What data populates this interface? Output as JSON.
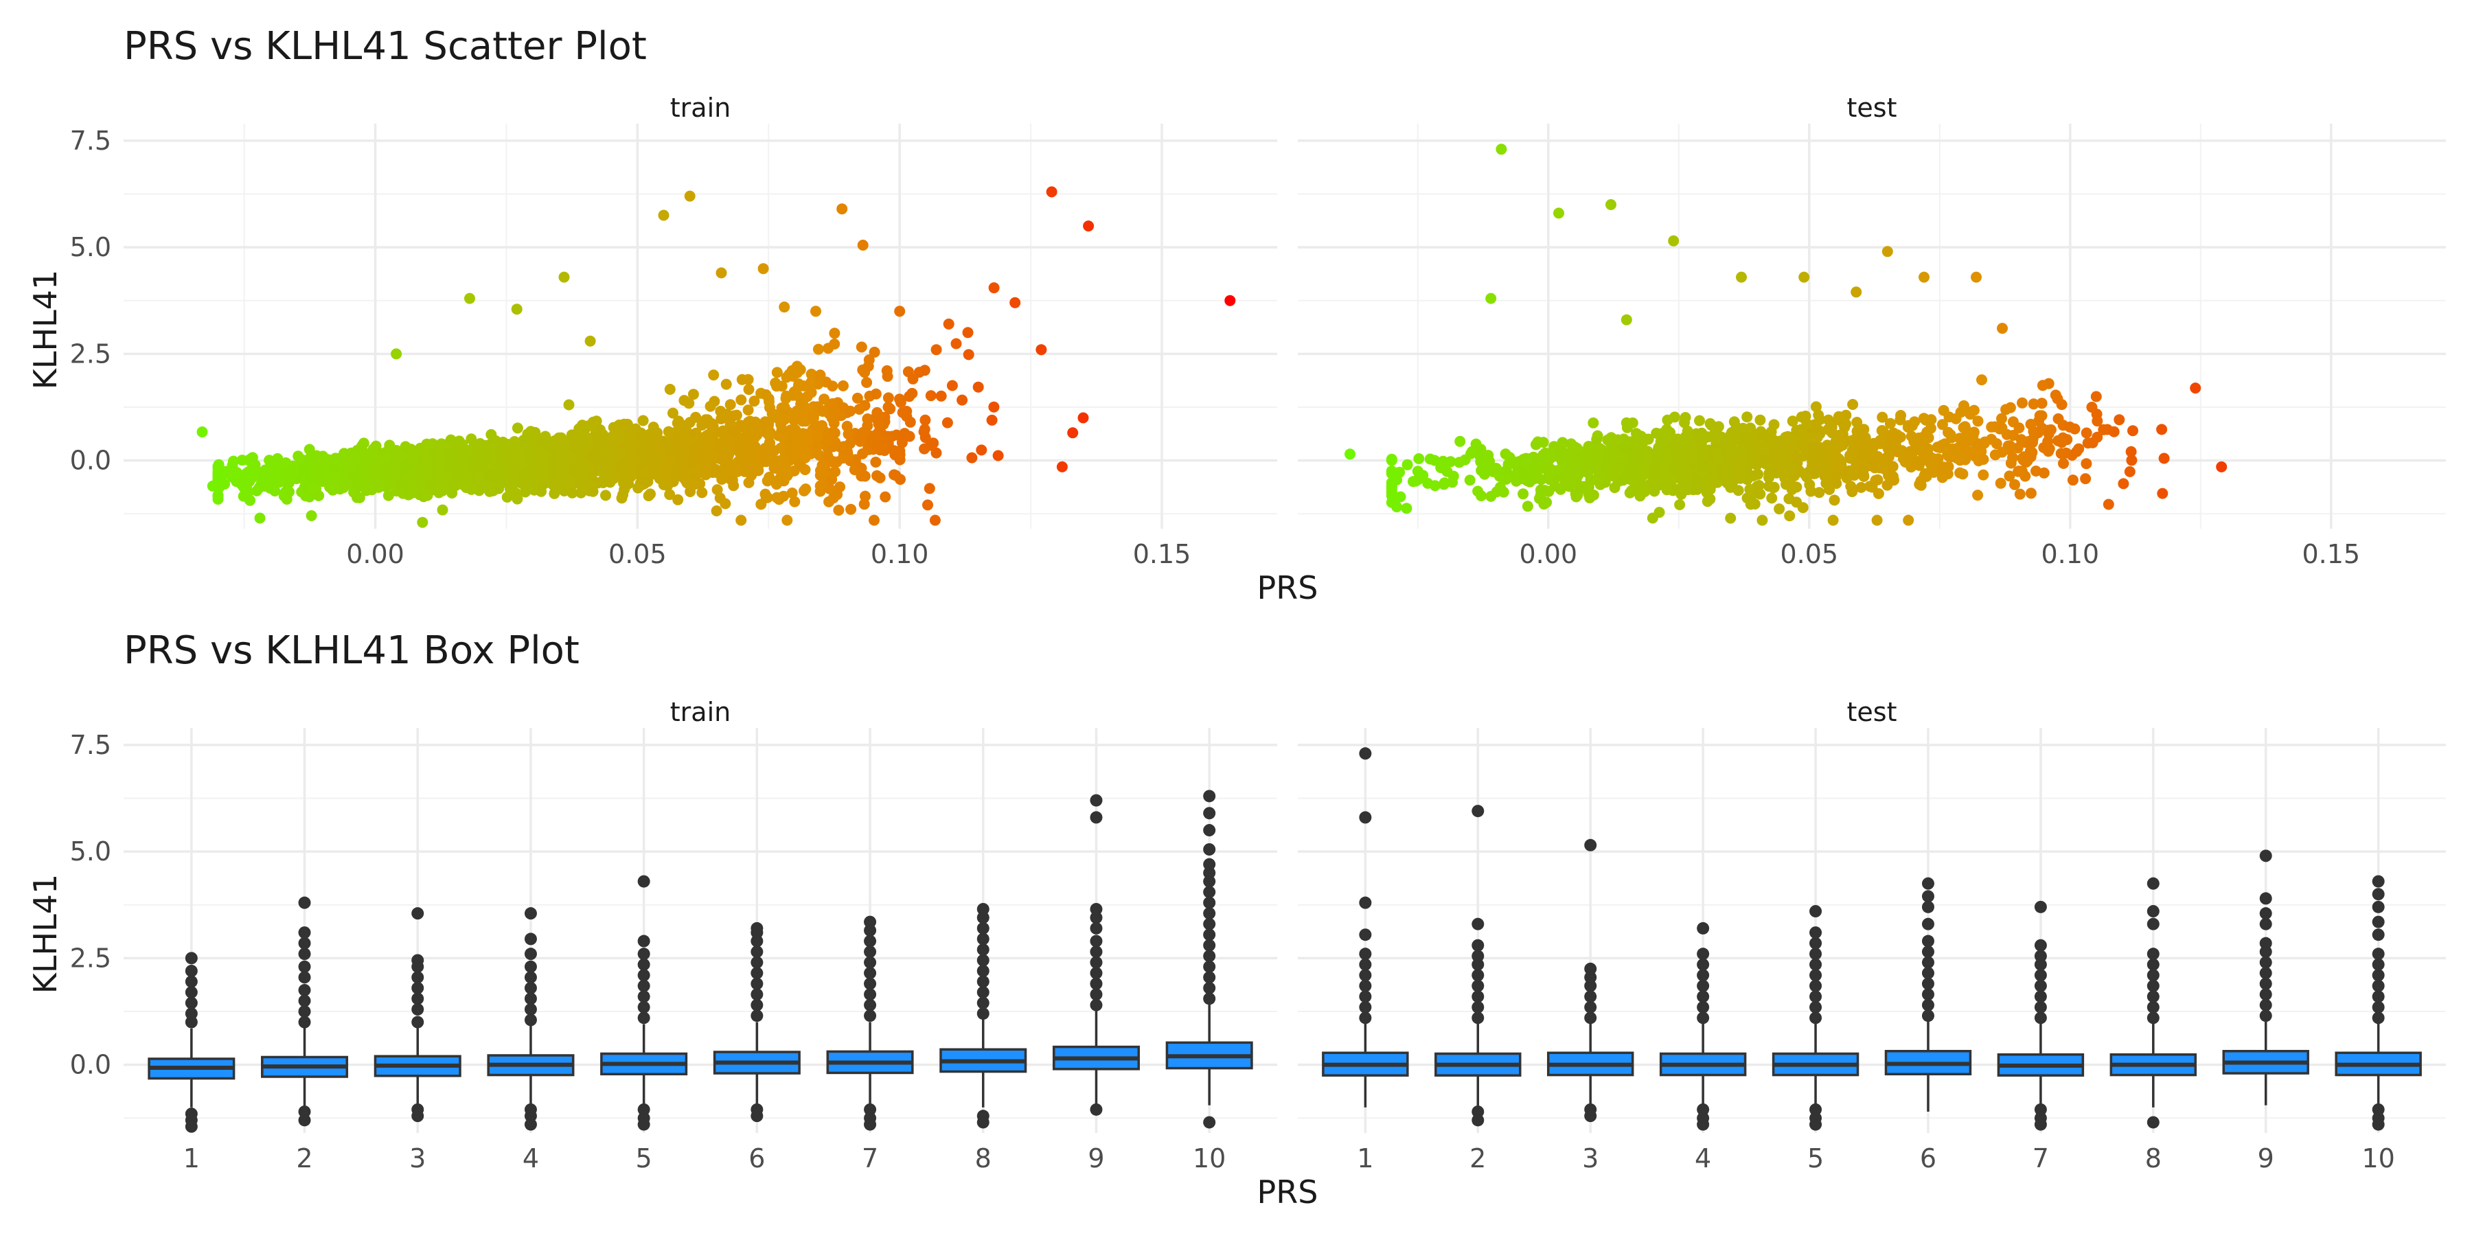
{
  "chart_data": [
    {
      "type": "scatter",
      "title": "PRS vs KLHL41 Scatter Plot",
      "xlabel": "PRS",
      "ylabel": "KLHL41",
      "xlim": [
        -0.048,
        0.172
      ],
      "ylim": [
        -1.6,
        7.9
      ],
      "xticks": [
        0.0,
        0.05,
        0.1,
        0.15
      ],
      "xtick_labels": [
        "0.00",
        "0.05",
        "0.10",
        "0.15"
      ],
      "yticks": [
        0.0,
        2.5,
        5.0,
        7.5
      ],
      "ytick_labels": [
        "0.0",
        "2.5",
        "5.0",
        "7.5"
      ],
      "grid": true,
      "legend": "none",
      "color_scale": {
        "low": "#66ff00",
        "mid": "#e09000",
        "high": "#ff0000",
        "variable": "PRS"
      },
      "panels": [
        {
          "name": "train",
          "points": [
            [
              -0.033,
              0.67
            ],
            [
              -0.031,
              -0.6
            ],
            [
              -0.022,
              -1.35
            ],
            [
              -0.01,
              0.1
            ],
            [
              0.004,
              2.5
            ],
            [
              0.009,
              -1.45
            ],
            [
              0.018,
              3.8
            ],
            [
              0.027,
              3.55
            ],
            [
              0.036,
              4.3
            ],
            [
              0.041,
              2.8
            ],
            [
              0.055,
              5.75
            ],
            [
              0.06,
              6.2
            ],
            [
              0.066,
              4.4
            ],
            [
              0.074,
              4.5
            ],
            [
              0.078,
              3.6
            ],
            [
              0.084,
              3.5
            ],
            [
              0.089,
              5.9
            ],
            [
              0.093,
              5.05
            ],
            [
              0.1,
              3.5
            ],
            [
              0.107,
              2.6
            ],
            [
              0.113,
              3.0
            ],
            [
              0.118,
              4.05
            ],
            [
              0.122,
              3.7
            ],
            [
              0.127,
              2.6
            ],
            [
              0.129,
              6.3
            ],
            [
              0.131,
              -0.15
            ],
            [
              0.133,
              0.65
            ],
            [
              0.135,
              1.0
            ],
            [
              0.136,
              5.5
            ],
            [
              0.163,
              3.75
            ]
          ],
          "cloud": [
            {
              "x_mean": 0.025,
              "x_sd": 0.024,
              "y_mean": -0.05,
              "y_sd": 0.45,
              "n": 2600
            },
            {
              "x_mean": 0.082,
              "x_sd": 0.015,
              "y_mean": 0.25,
              "y_sd": 0.9,
              "n": 420
            }
          ]
        },
        {
          "name": "test",
          "points": [
            [
              -0.038,
              0.15
            ],
            [
              -0.027,
              -0.1
            ],
            [
              -0.025,
              -0.25
            ],
            [
              -0.009,
              7.3
            ],
            [
              -0.011,
              3.8
            ],
            [
              0.002,
              5.8
            ],
            [
              0.012,
              6.0
            ],
            [
              0.015,
              3.3
            ],
            [
              0.024,
              5.15
            ],
            [
              0.037,
              4.3
            ],
            [
              0.049,
              4.3
            ],
            [
              0.059,
              3.95
            ],
            [
              0.065,
              4.9
            ],
            [
              0.072,
              4.3
            ],
            [
              0.082,
              4.3
            ],
            [
              0.087,
              3.1
            ],
            [
              0.105,
              1.5
            ],
            [
              0.112,
              0.7
            ],
            [
              0.118,
              0.05
            ],
            [
              0.124,
              1.7
            ],
            [
              0.129,
              -0.15
            ],
            [
              0.063,
              -1.4
            ],
            [
              0.069,
              -1.4
            ],
            [
              0.041,
              -1.4
            ],
            [
              0.02,
              -1.35
            ]
          ],
          "cloud": [
            {
              "x_mean": 0.03,
              "x_sd": 0.024,
              "y_mean": 0.0,
              "y_sd": 0.6,
              "n": 1150
            },
            {
              "x_mean": 0.085,
              "x_sd": 0.014,
              "y_mean": 0.1,
              "y_sd": 0.55,
              "n": 170
            }
          ]
        }
      ]
    },
    {
      "type": "box",
      "title": "PRS vs KLHL41 Box Plot",
      "xlabel": "PRS",
      "ylabel": "KLHL41",
      "categories": [
        "1",
        "2",
        "3",
        "4",
        "5",
        "6",
        "7",
        "8",
        "9",
        "10"
      ],
      "ylim": [
        -1.6,
        7.9
      ],
      "yticks": [
        0.0,
        2.5,
        5.0,
        7.5
      ],
      "ytick_labels": [
        "0.0",
        "2.5",
        "5.0",
        "7.5"
      ],
      "grid": true,
      "box_color": "#1e90ff",
      "panels": [
        {
          "name": "train",
          "boxes": [
            {
              "q1": -0.32,
              "median": -0.07,
              "q3": 0.14,
              "lower": -1.0,
              "upper": 0.85,
              "outliers_high": [
                1.0,
                1.2,
                1.45,
                1.7,
                1.95,
                2.2,
                2.5
              ],
              "outliers_low": [
                -1.15,
                -1.3,
                -1.45
              ]
            },
            {
              "q1": -0.28,
              "median": -0.04,
              "q3": 0.18,
              "lower": -1.0,
              "upper": 0.9,
              "outliers_high": [
                1.0,
                1.25,
                1.5,
                1.75,
                2.05,
                2.3,
                2.6,
                2.85,
                3.1,
                3.8
              ],
              "outliers_low": [
                -1.1,
                -1.3
              ]
            },
            {
              "q1": -0.26,
              "median": -0.02,
              "q3": 0.2,
              "lower": -1.0,
              "upper": 0.9,
              "outliers_high": [
                1.0,
                1.3,
                1.55,
                1.8,
                2.05,
                2.3,
                2.45,
                3.55
              ],
              "outliers_low": [
                -1.05,
                -1.2
              ]
            },
            {
              "q1": -0.24,
              "median": 0.0,
              "q3": 0.22,
              "lower": -1.0,
              "upper": 0.92,
              "outliers_high": [
                1.05,
                1.3,
                1.55,
                1.8,
                2.05,
                2.3,
                2.6,
                2.95,
                3.55
              ],
              "outliers_low": [
                -1.05,
                -1.2,
                -1.4
              ]
            },
            {
              "q1": -0.22,
              "median": 0.02,
              "q3": 0.26,
              "lower": -1.0,
              "upper": 0.95,
              "outliers_high": [
                1.1,
                1.35,
                1.6,
                1.85,
                2.1,
                2.35,
                2.6,
                2.9,
                4.3
              ],
              "outliers_low": [
                -1.05,
                -1.25,
                -1.4
              ]
            },
            {
              "q1": -0.2,
              "median": 0.05,
              "q3": 0.3,
              "lower": -1.0,
              "upper": 1.0,
              "outliers_high": [
                1.15,
                1.4,
                1.65,
                1.9,
                2.15,
                2.4,
                2.65,
                2.9,
                3.1,
                3.2
              ],
              "outliers_low": [
                -1.05,
                -1.2
              ]
            },
            {
              "q1": -0.19,
              "median": 0.05,
              "q3": 0.31,
              "lower": -1.0,
              "upper": 1.0,
              "outliers_high": [
                1.15,
                1.4,
                1.65,
                1.9,
                2.15,
                2.4,
                2.65,
                2.9,
                3.15,
                3.35
              ],
              "outliers_low": [
                -1.05,
                -1.25,
                -1.4
              ]
            },
            {
              "q1": -0.16,
              "median": 0.08,
              "q3": 0.36,
              "lower": -1.0,
              "upper": 1.1,
              "outliers_high": [
                1.2,
                1.45,
                1.7,
                1.95,
                2.2,
                2.45,
                2.7,
                2.95,
                3.2,
                3.45,
                3.65
              ],
              "outliers_low": [
                -1.2,
                -1.35
              ]
            },
            {
              "q1": -0.1,
              "median": 0.15,
              "q3": 0.42,
              "lower": -1.0,
              "upper": 1.3,
              "outliers_high": [
                1.4,
                1.65,
                1.9,
                2.15,
                2.4,
                2.65,
                2.9,
                3.2,
                3.45,
                3.65,
                5.8,
                6.2
              ],
              "outliers_low": [
                -1.05
              ]
            },
            {
              "q1": -0.08,
              "median": 0.2,
              "q3": 0.52,
              "lower": -0.95,
              "upper": 1.45,
              "outliers_high": [
                1.55,
                1.8,
                2.05,
                2.3,
                2.55,
                2.8,
                3.05,
                3.3,
                3.55,
                3.8,
                4.05,
                4.3,
                4.5,
                4.7,
                5.05,
                5.5,
                5.9,
                6.3
              ],
              "outliers_low": [
                -1.35
              ]
            }
          ]
        },
        {
          "name": "test",
          "boxes": [
            {
              "q1": -0.25,
              "median": 0.0,
              "q3": 0.28,
              "lower": -1.0,
              "upper": 1.0,
              "outliers_high": [
                1.1,
                1.35,
                1.6,
                1.85,
                2.1,
                2.35,
                2.6,
                3.05,
                3.8,
                5.8,
                7.3
              ],
              "outliers_low": []
            },
            {
              "q1": -0.25,
              "median": 0.0,
              "q3": 0.26,
              "lower": -1.0,
              "upper": 1.0,
              "outliers_high": [
                1.1,
                1.35,
                1.6,
                1.85,
                2.1,
                2.35,
                2.55,
                2.8,
                3.3,
                5.95
              ],
              "outliers_low": [
                -1.1,
                -1.3
              ]
            },
            {
              "q1": -0.24,
              "median": 0.0,
              "q3": 0.28,
              "lower": -1.0,
              "upper": 1.0,
              "outliers_high": [
                1.1,
                1.35,
                1.6,
                1.85,
                2.05,
                2.25,
                5.15
              ],
              "outliers_low": [
                -1.05,
                -1.2
              ]
            },
            {
              "q1": -0.24,
              "median": 0.0,
              "q3": 0.26,
              "lower": -1.0,
              "upper": 1.0,
              "outliers_high": [
                1.1,
                1.35,
                1.6,
                1.85,
                2.1,
                2.35,
                2.6,
                3.2
              ],
              "outliers_low": [
                -1.05,
                -1.25,
                -1.4
              ]
            },
            {
              "q1": -0.24,
              "median": 0.0,
              "q3": 0.26,
              "lower": -1.0,
              "upper": 1.0,
              "outliers_high": [
                1.1,
                1.35,
                1.6,
                1.85,
                2.1,
                2.35,
                2.6,
                2.85,
                3.1,
                3.6
              ],
              "outliers_low": [
                -1.05,
                -1.25,
                -1.4
              ]
            },
            {
              "q1": -0.22,
              "median": 0.02,
              "q3": 0.32,
              "lower": -1.1,
              "upper": 1.05,
              "outliers_high": [
                1.15,
                1.4,
                1.65,
                1.9,
                2.15,
                2.4,
                2.65,
                2.9,
                3.3,
                3.7,
                3.95,
                4.25
              ],
              "outliers_low": []
            },
            {
              "q1": -0.25,
              "median": -0.02,
              "q3": 0.24,
              "lower": -1.0,
              "upper": 1.0,
              "outliers_high": [
                1.1,
                1.35,
                1.6,
                1.85,
                2.1,
                2.35,
                2.55,
                2.8,
                3.7
              ],
              "outliers_low": [
                -1.05,
                -1.25,
                -1.4
              ]
            },
            {
              "q1": -0.24,
              "median": 0.0,
              "q3": 0.24,
              "lower": -1.0,
              "upper": 1.0,
              "outliers_high": [
                1.1,
                1.35,
                1.6,
                1.85,
                2.1,
                2.35,
                2.6,
                3.3,
                3.6,
                4.25
              ],
              "outliers_low": [
                -1.35
              ]
            },
            {
              "q1": -0.2,
              "median": 0.05,
              "q3": 0.32,
              "lower": -0.95,
              "upper": 1.05,
              "outliers_high": [
                1.15,
                1.4,
                1.65,
                1.9,
                2.15,
                2.4,
                2.65,
                2.85,
                3.3,
                3.55,
                3.9,
                4.9
              ],
              "outliers_low": []
            },
            {
              "q1": -0.24,
              "median": 0.0,
              "q3": 0.28,
              "lower": -1.0,
              "upper": 1.0,
              "outliers_high": [
                1.1,
                1.35,
                1.6,
                1.85,
                2.1,
                2.35,
                2.6,
                3.05,
                3.35,
                3.7,
                4.0,
                4.3
              ],
              "outliers_low": [
                -1.05,
                -1.25,
                -1.4
              ]
            }
          ]
        }
      ]
    }
  ]
}
